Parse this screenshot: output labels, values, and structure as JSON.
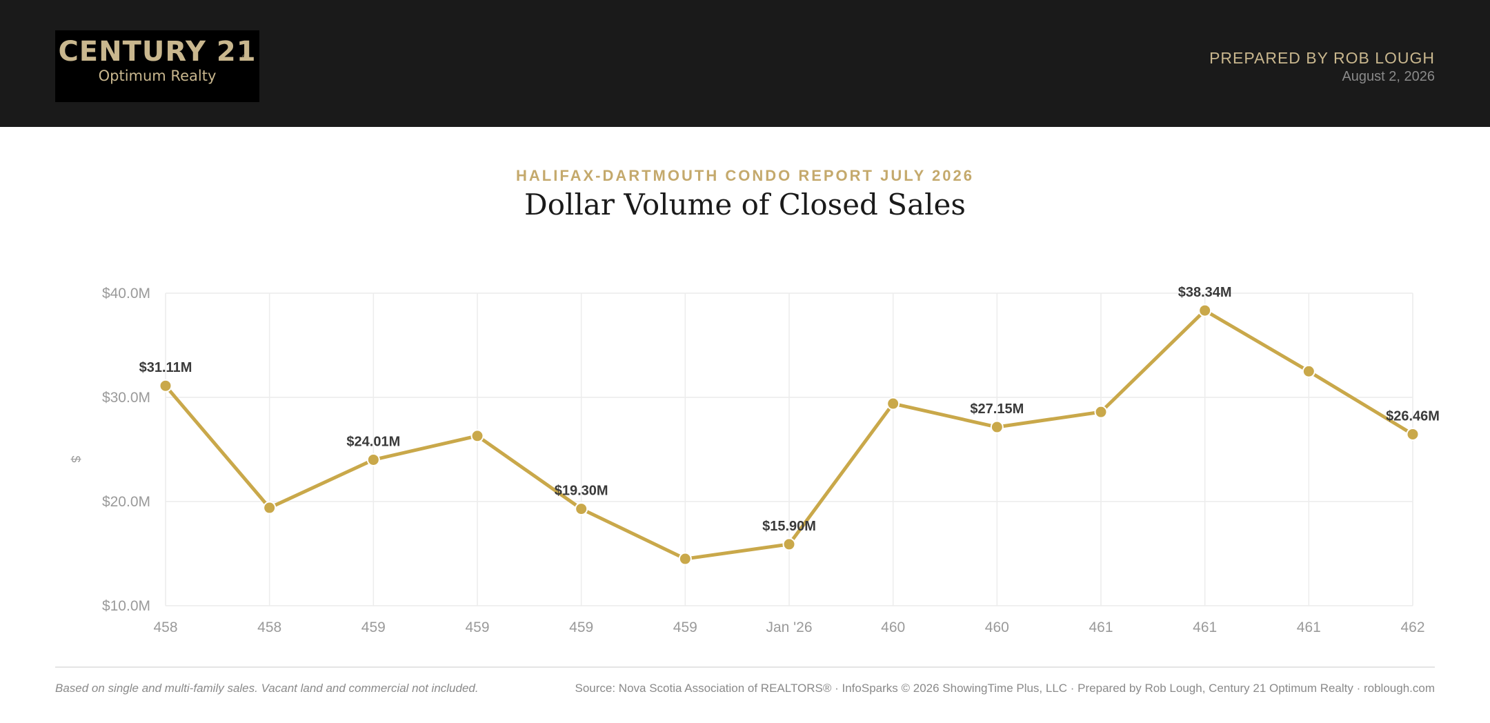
{
  "header": {
    "logo_brand": "CENTURY 21",
    "logo_reg": "®",
    "logo_sub": "Optimum Realty",
    "prepared_by": "PREPARED BY ROB LOUGH",
    "date": "August 2, 2026"
  },
  "report": {
    "subtitle": "HALIFAX-DARTMOUTH CONDO REPORT JULY 2026",
    "title": "Dollar Volume of Closed Sales"
  },
  "colors": {
    "header_bg": "#1a1a1a",
    "accent": "#c9a84a",
    "gold_text": "#c9b78e"
  },
  "chart_data": {
    "type": "line",
    "ylabel": "$",
    "xlabel": "",
    "ylim": [
      10,
      40
    ],
    "y_ticks": [
      {
        "value": 10,
        "label": "$10.0M"
      },
      {
        "value": 20,
        "label": "$20.0M"
      },
      {
        "value": 30,
        "label": "$30.0M"
      },
      {
        "value": 40,
        "label": "$40.0M"
      }
    ],
    "grid": true,
    "categories": [
      "458",
      "458",
      "459",
      "459",
      "459",
      "459",
      "Jan '26",
      "460",
      "460",
      "461",
      "461",
      "461",
      "462"
    ],
    "series": [
      {
        "values": [
          31.11,
          19.4,
          24.01,
          26.3,
          19.3,
          14.5,
          15.9,
          29.4,
          27.15,
          28.6,
          38.34,
          32.5,
          26.46
        ],
        "data_labels": [
          "$31.11M",
          "",
          "$24.01M",
          "",
          "$19.30M",
          "",
          "$15.90M",
          "",
          "$27.15M",
          "",
          "$38.34M",
          "",
          "$26.46M"
        ]
      }
    ]
  },
  "footer": {
    "note": "Based on single and multi-family sales. Vacant land and commercial not included.",
    "source": "Source: Nova Scotia Association of REALTORS® · InfoSparks © 2026 ShowingTime Plus, LLC · Prepared by Rob Lough, Century 21 Optimum Realty · roblough.com"
  }
}
